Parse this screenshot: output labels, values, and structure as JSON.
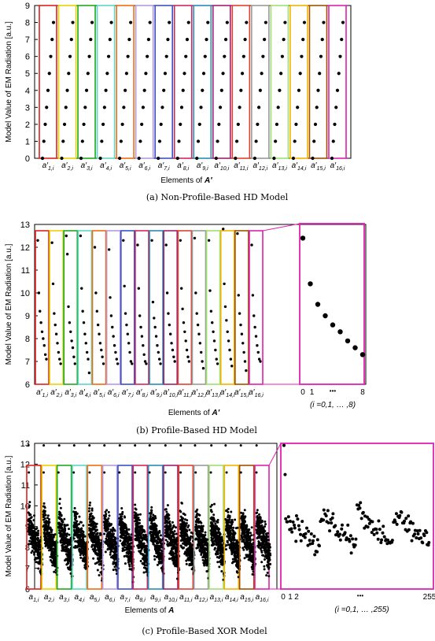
{
  "palette": [
    "#e02020",
    "#e8d400",
    "#1fa81f",
    "#5ad8c8",
    "#f06a10",
    "#b69adc",
    "#3a52c4",
    "#d0285a",
    "#2a8ab8",
    "#a02070",
    "#e04030",
    "#9a9a9a",
    "#9ee070",
    "#f0b400",
    "#a05000",
    "#e020b0"
  ],
  "panels": [
    {
      "caption": "(a) Non-Profile-Based HD Model",
      "ylabel": "Model Value of EM Radiation [a.u.]",
      "xlabel_prefix": "Elements of ",
      "xlabel_symbol": "A′",
      "yticks": [
        "0",
        "1",
        "2",
        "3",
        "4",
        "5",
        "6",
        "7",
        "8",
        "9"
      ],
      "xticks": [
        "a′1,i",
        "a′2,i",
        "a′3,i",
        "a′4,i",
        "a′5,i",
        "a′6,i",
        "a′7,i",
        "a′8,i",
        "a′9,i",
        "a′10,i",
        "a′11,i",
        "a′12,i",
        "a′13,i",
        "a′14,i",
        "a′15,i",
        "a′16,i"
      ]
    },
    {
      "caption": "(b) Profile-Based HD Model",
      "ylabel": "Model Value of EM Radiation [a.u.]",
      "xlabel_prefix": "Elements of ",
      "xlabel_symbol": "A′",
      "yticks": [
        "6",
        "7",
        "8",
        "9",
        "10",
        "11",
        "12",
        "13"
      ],
      "xticks": [
        "a′1,i",
        "a′2,i",
        "a′3,i",
        "a′4,i",
        "a′5,i",
        "a′6,i",
        "a′7,i",
        "a′8,i",
        "a′9,i",
        "a′10,i",
        "a′11,i",
        "a′12,i",
        "a′13,i",
        "a′14,i",
        "a′15,i",
        "a′16,i"
      ],
      "zoom_ticks": [
        "0",
        "1",
        "•••",
        "8"
      ],
      "zoom_note": "(i =0,1, … ,8)"
    },
    {
      "caption": "(c) Profile-Based XOR Model",
      "ylabel": "Model Value of EM Radiation [a.u.]",
      "xlabel_prefix": "Elements of ",
      "xlabel_symbol": "A",
      "yticks": [
        "6",
        "7",
        "8",
        "9",
        "10",
        "11",
        "12",
        "13"
      ],
      "xticks": [
        "a1,i",
        "a2,i",
        "a3,i",
        "a4,i",
        "a5,i",
        "a6,i",
        "a7,i",
        "a8,i",
        "a9,i",
        "a10,i",
        "a11,i",
        "a12,i",
        "a13,i",
        "a14,i",
        "a15,i",
        "a16,i"
      ],
      "zoom_ticks": [
        "0",
        "1",
        "2",
        "•••",
        "255"
      ],
      "zoom_note": "(i =0,1, … ,255)"
    }
  ],
  "chart_data": [
    {
      "type": "scatter",
      "title": "(a) Non-Profile-Based HD Model",
      "ylabel": "Model Value of EM Radiation [a.u.]",
      "xlabel": "Elements of A′",
      "ylim": [
        0,
        9
      ],
      "categories": [
        "a′1,i",
        "a′2,i",
        "a′3,i",
        "a′4,i",
        "a′5,i",
        "a′6,i",
        "a′7,i",
        "a′8,i",
        "a′9,i",
        "a′10,i",
        "a′11,i",
        "a′12,i",
        "a′13,i",
        "a′14,i",
        "a′15,i",
        "a′16,i"
      ],
      "per_element_values": [
        0,
        1,
        2,
        3,
        4,
        5,
        6,
        7,
        8
      ]
    },
    {
      "type": "scatter",
      "title": "(b) Profile-Based HD Model",
      "ylabel": "Model Value of EM Radiation [a.u.]",
      "xlabel": "Elements of A′",
      "ylim": [
        6,
        13
      ],
      "categories": [
        "a′1,i",
        "a′2,i",
        "a′3,i",
        "a′4,i",
        "a′5,i",
        "a′6,i",
        "a′7,i",
        "a′8,i",
        "a′9,i",
        "a′10,i",
        "a′11,i",
        "a′12,i",
        "a′13,i",
        "a′14,i",
        "a′15,i",
        "a′16,i"
      ],
      "series": [
        {
          "values": [
            12.3,
            10.0,
            9.2,
            8.7,
            8.3,
            8.0,
            7.7,
            7.3,
            7.1
          ]
        },
        {
          "values": [
            12.2,
            10.4,
            9.1,
            8.6,
            8.2,
            7.8,
            7.4,
            7.1,
            6.9
          ]
        },
        {
          "values": [
            12.5,
            11.7,
            9.4,
            8.7,
            8.3,
            7.9,
            7.6,
            7.2,
            6.9
          ]
        },
        {
          "values": [
            12.5,
            10.2,
            9.2,
            8.7,
            8.2,
            7.8,
            7.4,
            7.1,
            6.5
          ]
        },
        {
          "values": [
            12.0,
            10.0,
            9.2,
            8.6,
            8.2,
            7.8,
            7.5,
            7.2,
            6.9
          ]
        },
        {
          "values": [
            11.9,
            9.8,
            9.0,
            8.5,
            8.1,
            7.7,
            7.4,
            7.1,
            6.9
          ]
        },
        {
          "values": [
            12.3,
            10.3,
            9.1,
            8.6,
            8.2,
            7.8,
            7.4,
            7.0,
            6.9
          ]
        },
        {
          "values": [
            12.1,
            10.2,
            9.0,
            8.5,
            8.1,
            7.7,
            7.3,
            7.0,
            6.9
          ]
        },
        {
          "values": [
            12.3,
            9.6,
            8.9,
            8.5,
            8.1,
            7.7,
            7.4,
            7.1,
            6.9
          ]
        },
        {
          "values": [
            12.1,
            10.0,
            9.1,
            8.6,
            8.2,
            7.8,
            7.5,
            7.2,
            7.0
          ]
        },
        {
          "values": [
            12.3,
            10.2,
            9.3,
            8.7,
            8.3,
            7.9,
            7.5,
            7.2,
            7.0
          ]
        },
        {
          "values": [
            12.4,
            10.0,
            9.1,
            8.6,
            8.2,
            7.8,
            7.4,
            7.0,
            6.7
          ]
        },
        {
          "values": [
            12.3,
            10.1,
            9.2,
            8.7,
            8.3,
            7.9,
            7.5,
            7.1,
            6.9
          ]
        },
        {
          "values": [
            12.8,
            10.4,
            9.4,
            8.8,
            8.3,
            7.9,
            7.5,
            7.1,
            6.8
          ]
        },
        {
          "values": [
            12.6,
            9.9,
            9.1,
            8.6,
            8.2,
            7.8,
            7.4,
            7.0,
            6.6
          ]
        },
        {
          "values": [
            12.1,
            9.9,
            9.0,
            8.5,
            8.1,
            7.7,
            7.4,
            7.1,
            7.0
          ]
        }
      ],
      "zoom": {
        "x": [
          0,
          1,
          2,
          3,
          4,
          5,
          6,
          7,
          8
        ],
        "values": [
          12.4,
          10.4,
          9.5,
          9.0,
          8.6,
          8.3,
          7.9,
          7.6,
          7.3
        ]
      }
    },
    {
      "type": "scatter",
      "title": "(c) Profile-Based XOR Model",
      "ylabel": "Model Value of EM Radiation [a.u.]",
      "xlabel": "Elements of A",
      "ylim": [
        6,
        13
      ],
      "categories": [
        "a1,i",
        "a2,i",
        "a3,i",
        "a4,i",
        "a5,i",
        "a6,i",
        "a7,i",
        "a8,i",
        "a9,i",
        "a10,i",
        "a11,i",
        "a12,i",
        "a13,i",
        "a14,i",
        "a15,i",
        "a16,i"
      ],
      "points_per_element": 256,
      "approx_mean": 8.3,
      "approx_range": [
        6.2,
        12.9
      ],
      "zoom_xlim": [
        0,
        255
      ]
    }
  ]
}
